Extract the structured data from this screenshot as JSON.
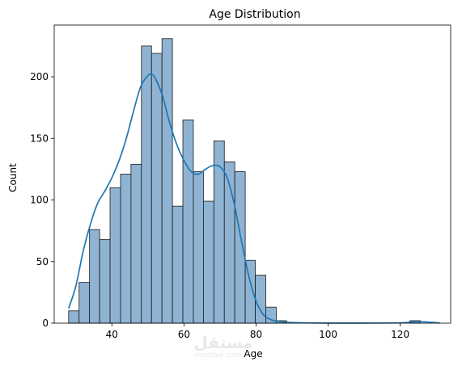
{
  "chart_data": {
    "type": "bar",
    "title": "Age Distribution",
    "xlabel": "Age",
    "ylabel": "Count",
    "xlim": [
      24,
      134
    ],
    "ylim": [
      0,
      242
    ],
    "x_ticks": [
      40,
      60,
      80,
      100,
      120
    ],
    "y_ticks": [
      0,
      50,
      100,
      150,
      200
    ],
    "grid": false,
    "colors": {
      "bar": "#8fb3d3",
      "edge": "#1a1a1a",
      "kde": "#1f77b4"
    },
    "bins": [
      {
        "x0": 28.0,
        "x1": 30.9,
        "count": 10
      },
      {
        "x0": 30.9,
        "x1": 33.8,
        "count": 33
      },
      {
        "x0": 33.8,
        "x1": 36.6,
        "count": 76
      },
      {
        "x0": 36.6,
        "x1": 39.5,
        "count": 68
      },
      {
        "x0": 39.5,
        "x1": 42.4,
        "count": 110
      },
      {
        "x0": 42.4,
        "x1": 45.3,
        "count": 121
      },
      {
        "x0": 45.3,
        "x1": 48.2,
        "count": 129
      },
      {
        "x0": 48.2,
        "x1": 51.0,
        "count": 225
      },
      {
        "x0": 51.0,
        "x1": 53.9,
        "count": 219
      },
      {
        "x0": 53.9,
        "x1": 56.8,
        "count": 231
      },
      {
        "x0": 56.8,
        "x1": 59.7,
        "count": 95
      },
      {
        "x0": 59.7,
        "x1": 62.6,
        "count": 165
      },
      {
        "x0": 62.6,
        "x1": 65.4,
        "count": 123
      },
      {
        "x0": 65.4,
        "x1": 68.3,
        "count": 99
      },
      {
        "x0": 68.3,
        "x1": 71.2,
        "count": 148
      },
      {
        "x0": 71.2,
        "x1": 74.1,
        "count": 131
      },
      {
        "x0": 74.1,
        "x1": 77.0,
        "count": 123
      },
      {
        "x0": 77.0,
        "x1": 79.8,
        "count": 51
      },
      {
        "x0": 79.8,
        "x1": 82.7,
        "count": 39
      },
      {
        "x0": 82.7,
        "x1": 85.6,
        "count": 13
      },
      {
        "x0": 85.6,
        "x1": 88.5,
        "count": 2
      },
      {
        "x0": 122.7,
        "x1": 125.6,
        "count": 2
      }
    ],
    "kde": {
      "x": [
        28,
        30,
        32,
        34,
        36,
        38,
        40,
        42,
        44,
        46,
        48,
        50,
        51,
        52,
        54,
        56,
        58,
        60,
        62,
        64,
        66,
        68,
        70,
        72,
        74,
        76,
        78,
        80,
        82,
        84,
        86,
        90,
        95,
        100,
        110,
        120,
        124,
        127,
        131
      ],
      "y": [
        12,
        30,
        58,
        80,
        97,
        107,
        118,
        132,
        150,
        172,
        192,
        201,
        202,
        199,
        185,
        163,
        145,
        132,
        123,
        121,
        125,
        128,
        127,
        118,
        96,
        66,
        38,
        18,
        7,
        3,
        1.5,
        0.5,
        0.2,
        0.1,
        0.1,
        0.3,
        1.2,
        1.0,
        0.2
      ]
    }
  },
  "watermark": {
    "text": "مستقل",
    "subtext": "mostaql.com"
  }
}
